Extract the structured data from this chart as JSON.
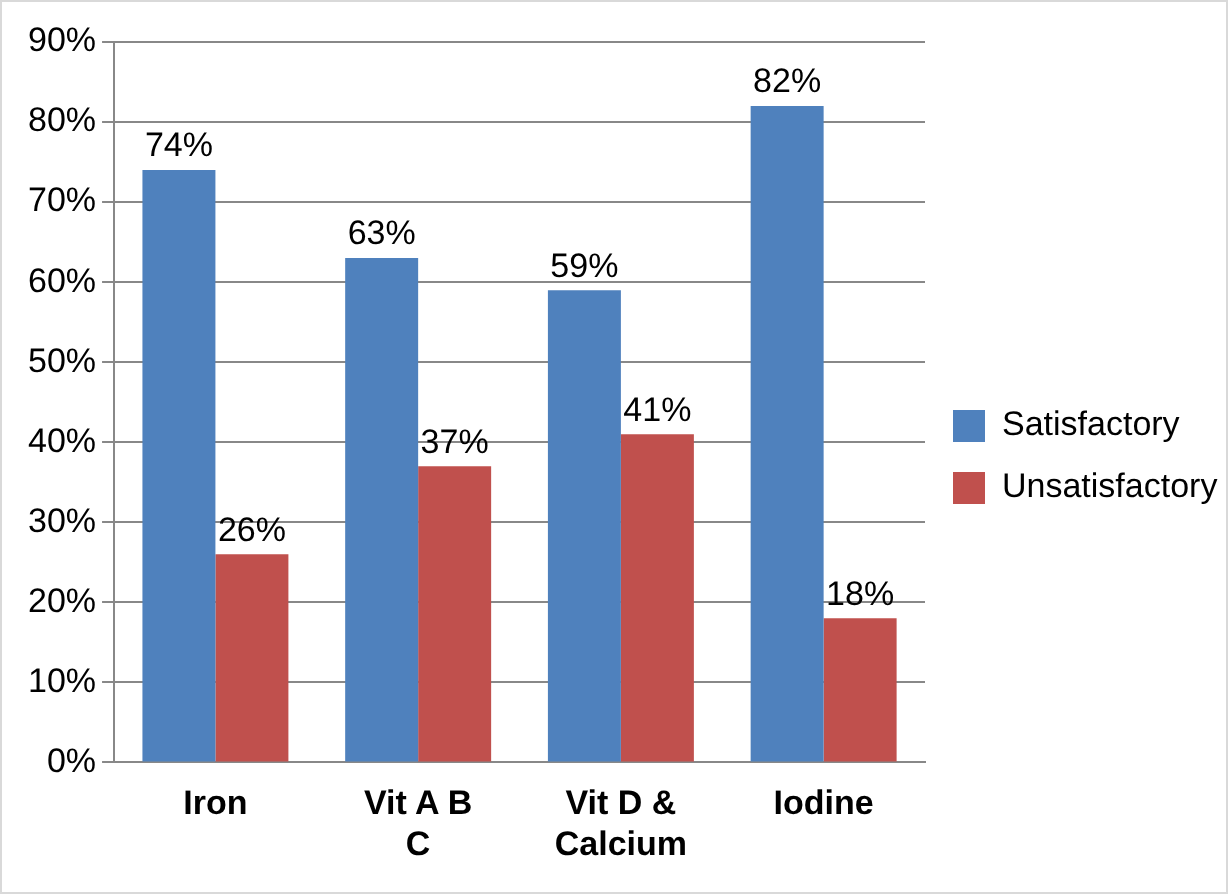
{
  "chart_data": {
    "type": "bar",
    "categories": [
      "Iron",
      "Vit A B C",
      "Vit D & Calcium",
      "Iodine"
    ],
    "series": [
      {
        "name": "Satisfactory",
        "color": "#4f81bd",
        "values": [
          74,
          63,
          59,
          82
        ],
        "value_labels": [
          "74%",
          "63%",
          "59%",
          "82%"
        ]
      },
      {
        "name": "Unsatisfactory",
        "color": "#c0504d",
        "values": [
          26,
          37,
          41,
          18
        ],
        "value_labels": [
          "26%",
          "37%",
          "41%",
          "18%"
        ]
      }
    ],
    "ylim": [
      0,
      90
    ],
    "yticks": [
      {
        "value": 0,
        "label": "0%"
      },
      {
        "value": 10,
        "label": "10%"
      },
      {
        "value": 20,
        "label": "20%"
      },
      {
        "value": 30,
        "label": "30%"
      },
      {
        "value": 40,
        "label": "40%"
      },
      {
        "value": 50,
        "label": "50%"
      },
      {
        "value": 60,
        "label": "60%"
      },
      {
        "value": 70,
        "label": "70%"
      },
      {
        "value": 80,
        "label": "80%"
      },
      {
        "value": 90,
        "label": "90%"
      }
    ],
    "grid": "y",
    "legend": "right"
  }
}
